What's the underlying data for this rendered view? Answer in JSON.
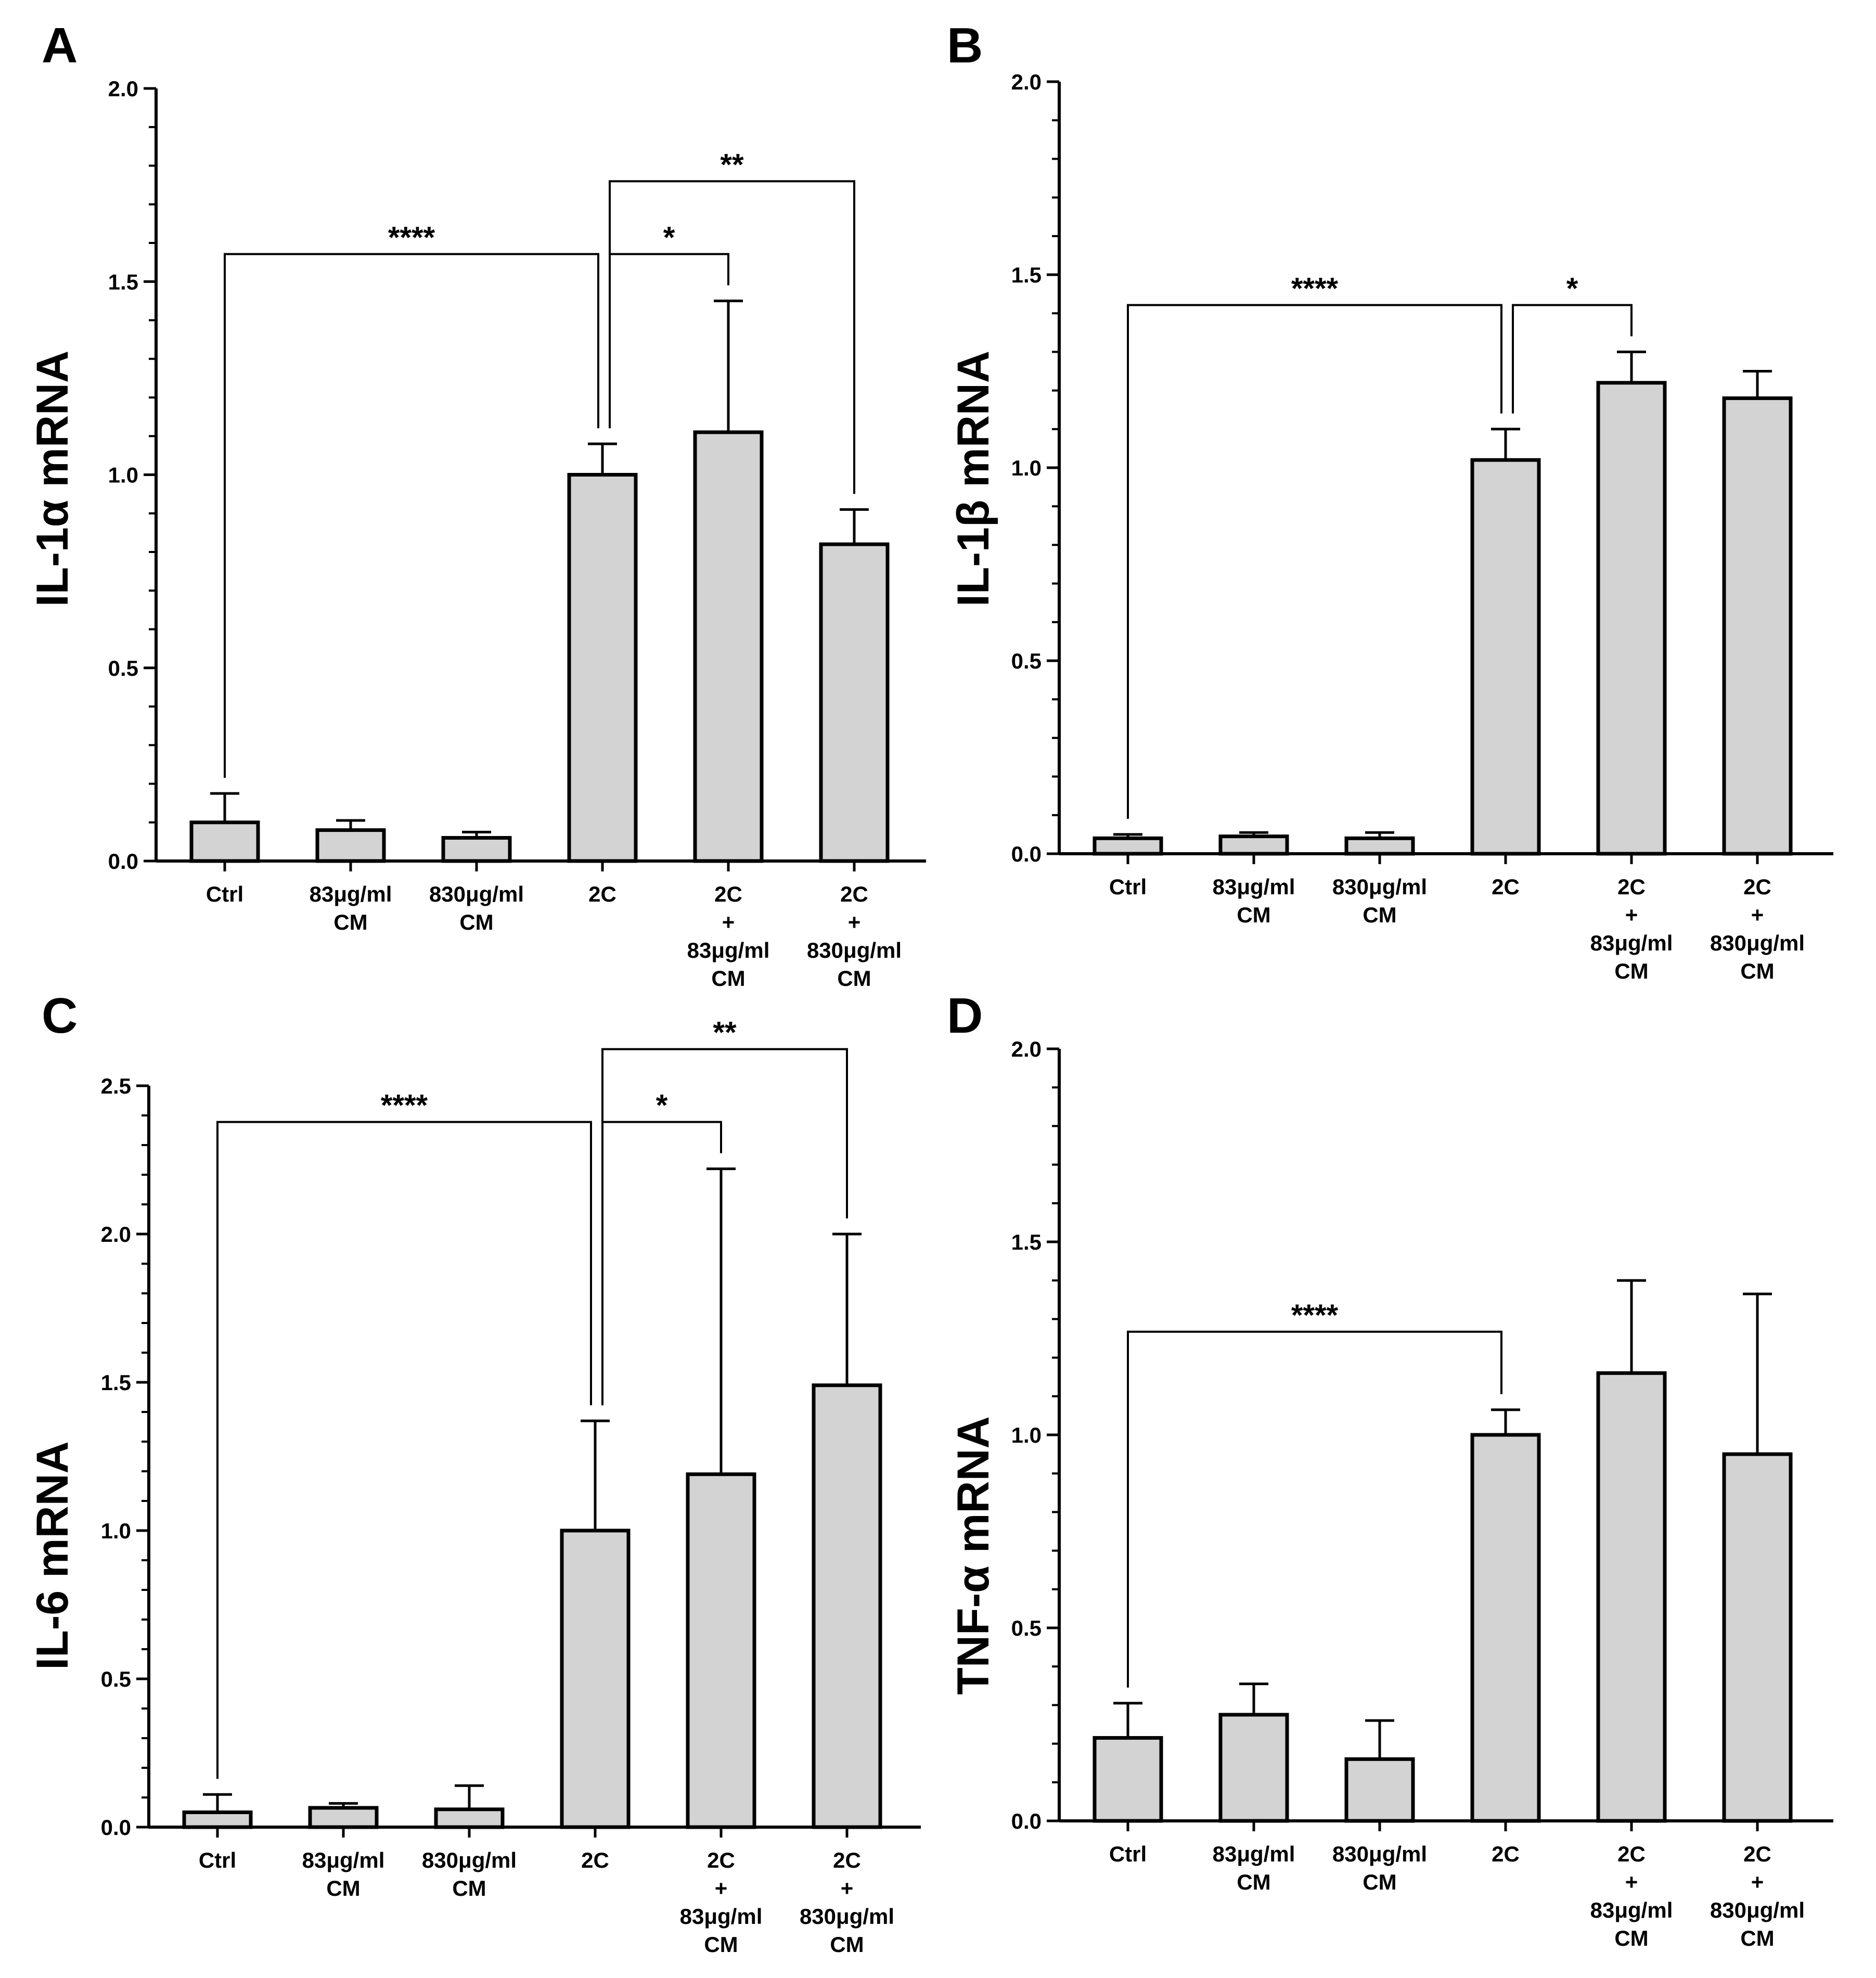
{
  "chart_data": [
    {
      "type": "bar",
      "panel": "A",
      "ylabel": "IL-1α mRNA",
      "ylim": [
        0,
        2.0
      ],
      "yticks": [
        "0.0",
        "0.5",
        "1.0",
        "1.5",
        "2.0"
      ],
      "categories": [
        [
          "Ctrl"
        ],
        [
          "83μg/ml",
          "CM"
        ],
        [
          "830μg/ml",
          "CM"
        ],
        [
          "2C"
        ],
        [
          "2C",
          "+",
          "83μg/ml",
          "CM"
        ],
        [
          "2C",
          "+",
          "830μg/ml",
          "CM"
        ]
      ],
      "values": [
        0.1,
        0.08,
        0.06,
        1.0,
        1.11,
        0.82
      ],
      "errors": [
        0.075,
        0.025,
        0.015,
        0.08,
        0.34,
        0.09
      ],
      "significance": [
        {
          "from": 0,
          "to": 3,
          "label": "****"
        },
        {
          "from": 3,
          "to": 4,
          "label": "*"
        },
        {
          "from": 3,
          "to": 5,
          "label": "**"
        }
      ]
    },
    {
      "type": "bar",
      "panel": "B",
      "ylabel": "IL-1β mRNA",
      "ylim": [
        0,
        2.0
      ],
      "yticks": [
        "0.0",
        "0.5",
        "1.0",
        "1.5",
        "2.0"
      ],
      "categories": [
        [
          "Ctrl"
        ],
        [
          "83μg/ml",
          "CM"
        ],
        [
          "830μg/ml",
          "CM"
        ],
        [
          "2C"
        ],
        [
          "2C",
          "+",
          "83μg/ml",
          "CM"
        ],
        [
          "2C",
          "+",
          "830μg/ml",
          "CM"
        ]
      ],
      "values": [
        0.04,
        0.045,
        0.04,
        1.02,
        1.22,
        1.18
      ],
      "errors": [
        0.01,
        0.01,
        0.015,
        0.08,
        0.08,
        0.07
      ],
      "significance": [
        {
          "from": 0,
          "to": 3,
          "label": "****"
        },
        {
          "from": 3,
          "to": 4,
          "label": "*"
        }
      ]
    },
    {
      "type": "bar",
      "panel": "C",
      "ylabel": "IL-6 mRNA",
      "ylim": [
        0,
        2.5
      ],
      "yticks": [
        "0.0",
        "0.5",
        "1.0",
        "1.5",
        "2.0",
        "2.5"
      ],
      "categories": [
        [
          "Ctrl"
        ],
        [
          "83μg/ml",
          "CM"
        ],
        [
          "830μg/ml",
          "CM"
        ],
        [
          "2C"
        ],
        [
          "2C",
          "+",
          "83μg/ml",
          "CM"
        ],
        [
          "2C",
          "+",
          "830μg/ml",
          "CM"
        ]
      ],
      "values": [
        0.05,
        0.065,
        0.06,
        1.0,
        1.19,
        1.49
      ],
      "errors": [
        0.06,
        0.015,
        0.08,
        0.37,
        1.03,
        0.51
      ],
      "significance": [
        {
          "from": 0,
          "to": 3,
          "label": "****"
        },
        {
          "from": 3,
          "to": 4,
          "label": "*"
        },
        {
          "from": 3,
          "to": 5,
          "label": "**"
        }
      ]
    },
    {
      "type": "bar",
      "panel": "D",
      "ylabel": "TNF-α mRNA",
      "ylim": [
        0,
        2.0
      ],
      "yticks": [
        "0.0",
        "0.5",
        "1.0",
        "1.5",
        "2.0"
      ],
      "categories": [
        [
          "Ctrl"
        ],
        [
          "83μg/ml",
          "CM"
        ],
        [
          "830μg/ml",
          "CM"
        ],
        [
          "2C"
        ],
        [
          "2C",
          "+",
          "83μg/ml",
          "CM"
        ],
        [
          "2C",
          "+",
          "830μg/ml",
          "CM"
        ]
      ],
      "values": [
        0.215,
        0.275,
        0.16,
        1.0,
        1.16,
        0.95
      ],
      "errors": [
        0.09,
        0.08,
        0.1,
        0.065,
        0.24,
        0.415
      ],
      "significance": [
        {
          "from": 0,
          "to": 3,
          "label": "****"
        }
      ]
    }
  ]
}
